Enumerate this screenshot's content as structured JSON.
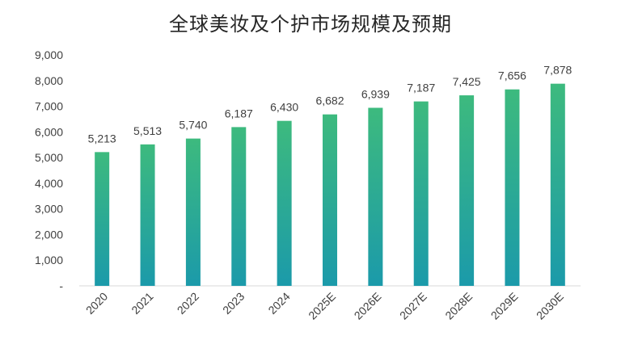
{
  "chart_data": {
    "type": "bar",
    "title": "全球美妆及个护市场规模及预期",
    "categories": [
      "2020",
      "2021",
      "2022",
      "2023",
      "2024",
      "2025E",
      "2026E",
      "2027E",
      "2028E",
      "2029E",
      "2030E"
    ],
    "values": [
      5213,
      5513,
      5740,
      6187,
      6430,
      6682,
      6939,
      7187,
      7425,
      7656,
      7878
    ],
    "data_labels": [
      "5,213",
      "5,513",
      "5,740",
      "6,187",
      "6,430",
      "6,682",
      "6,939",
      "7,187",
      "7,425",
      "7,656",
      "7,878"
    ],
    "y_ticks": [
      "-",
      "1,000",
      "2,000",
      "3,000",
      "4,000",
      "5,000",
      "6,000",
      "7,000",
      "8,000",
      "9,000"
    ],
    "ylim": [
      0,
      9000
    ],
    "xlabel": "",
    "ylabel": "",
    "grid": false,
    "colors": {
      "bar_top": "#3dba7e",
      "bar_bottom": "#1b9aaa",
      "axis": "#d9d9d9",
      "text": "#404040"
    }
  }
}
